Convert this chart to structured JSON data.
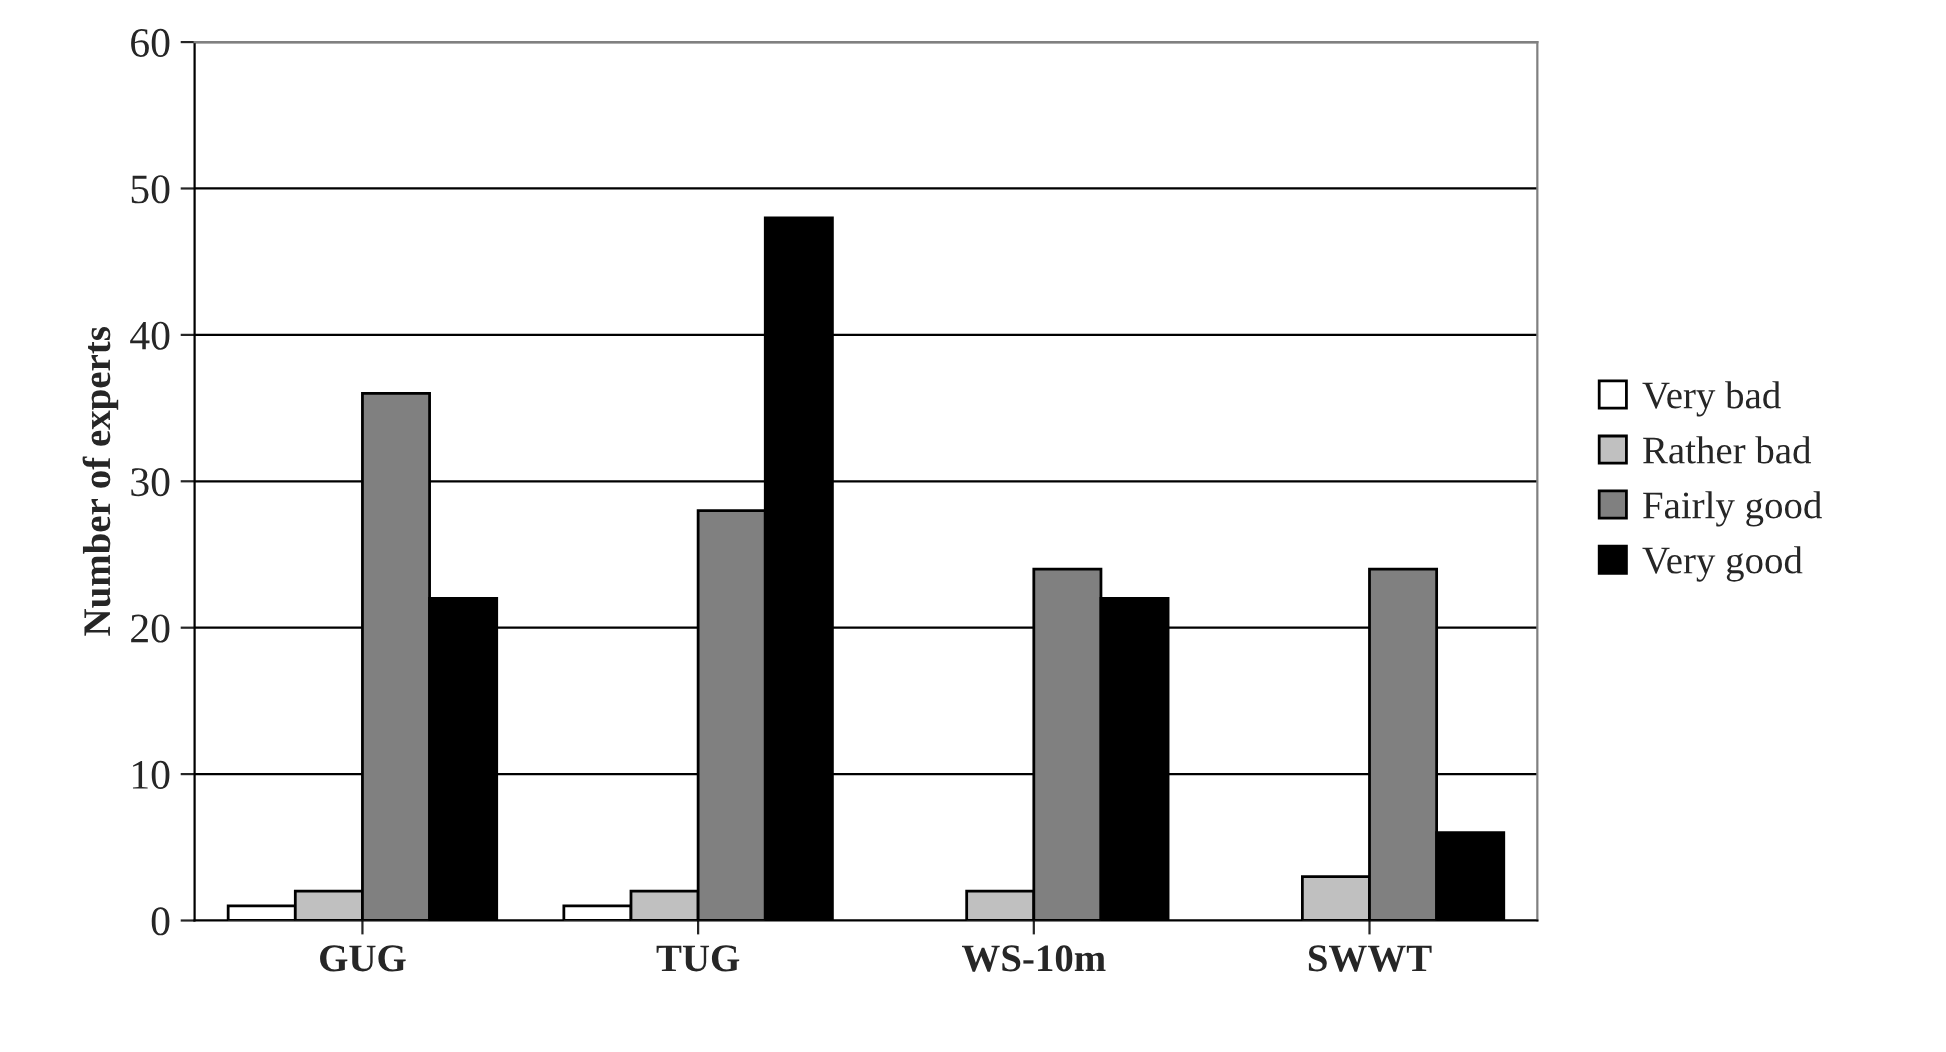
{
  "chart_data": {
    "type": "bar",
    "ylabel": "Number of experts",
    "categories": [
      "GUG",
      "TUG",
      "WS-10m",
      "SWWT"
    ],
    "series": [
      {
        "name": "Very bad",
        "color": "#ffffff",
        "values": [
          1,
          1,
          null,
          null
        ]
      },
      {
        "name": "Rather bad",
        "color": "#c0c0c0",
        "values": [
          2,
          2,
          2,
          3
        ]
      },
      {
        "name": "Fairly good",
        "color": "#808080",
        "values": [
          36,
          28,
          24,
          24
        ]
      },
      {
        "name": "Very good",
        "color": "#000000",
        "values": [
          22,
          48,
          22,
          6
        ]
      }
    ],
    "ylim": [
      0,
      60
    ],
    "yticks": [
      0,
      10,
      20,
      30,
      40,
      50,
      60
    ],
    "grid": "y",
    "legend": "right"
  }
}
